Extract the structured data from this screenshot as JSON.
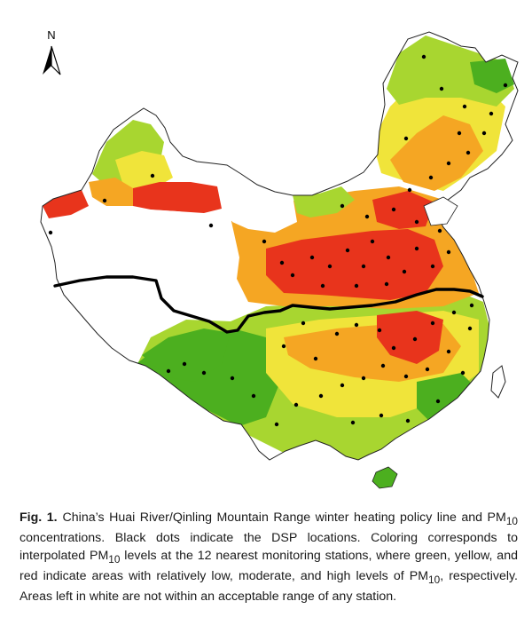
{
  "north_label": "N",
  "caption": {
    "label": "Fig. 1.",
    "seg1": "China’s Huai River/Qinling Mountain Range winter heating policy line and PM",
    "sub1": "10",
    "seg2": " concentrations. Black dots indicate the DSP locations. Coloring corresponds to interpolated PM",
    "sub2": "10",
    "seg3": " levels at the 12 nearest monitoring stations, where green, yellow, and red indicate areas with relatively low, moderate, and high levels of PM",
    "sub3": "10",
    "seg4": ", respectively. Areas left in white are not within an acceptable range of any station."
  },
  "colors": {
    "low": "#4caf1f",
    "low_mid": "#a8d630",
    "moderate": "#f0e43a",
    "mid_high": "#f5a623",
    "high": "#e8341c",
    "policy_line": "#000000",
    "outline": "#222222"
  }
}
